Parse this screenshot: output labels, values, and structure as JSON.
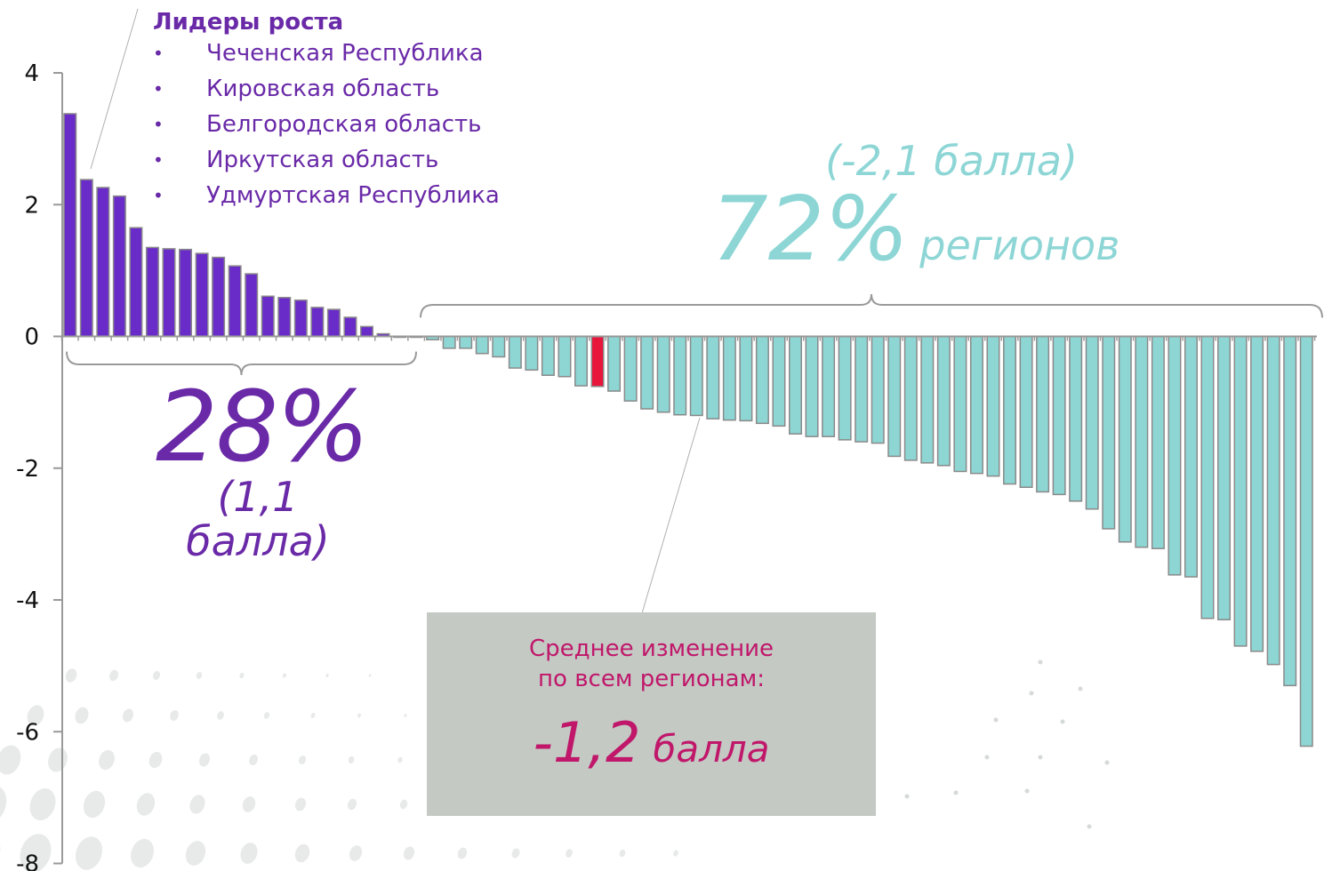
{
  "chart_data": {
    "type": "bar",
    "ylim": [
      -8,
      4
    ],
    "yticks": [
      "4",
      "2",
      "0",
      "-2",
      "-4",
      "-6",
      "-8"
    ],
    "colors": {
      "positive": "#6a2cc9",
      "negative": "#8dd6d4",
      "highlight": "#e8163b",
      "axis": "#999999"
    },
    "highlight_index": 32,
    "values": [
      3.38,
      2.38,
      2.26,
      2.13,
      1.65,
      1.35,
      1.33,
      1.32,
      1.26,
      1.2,
      1.07,
      0.95,
      0.61,
      0.59,
      0.55,
      0.44,
      0.41,
      0.29,
      0.15,
      0.04,
      0.0,
      0.0,
      -0.05,
      -0.18,
      -0.18,
      -0.26,
      -0.31,
      -0.48,
      -0.51,
      -0.59,
      -0.61,
      -0.75,
      -0.76,
      -0.83,
      -0.98,
      -1.1,
      -1.15,
      -1.19,
      -1.2,
      -1.25,
      -1.27,
      -1.28,
      -1.32,
      -1.36,
      -1.48,
      -1.52,
      -1.52,
      -1.57,
      -1.6,
      -1.62,
      -1.82,
      -1.88,
      -1.92,
      -1.96,
      -2.05,
      -2.08,
      -2.12,
      -2.24,
      -2.29,
      -2.36,
      -2.4,
      -2.5,
      -2.62,
      -2.92,
      -3.12,
      -3.2,
      -3.22,
      -3.62,
      -3.65,
      -4.28,
      -4.3,
      -4.7,
      -4.78,
      -4.98,
      -5.3,
      -6.22
    ]
  },
  "leaders": {
    "title": "Лидеры роста",
    "items": [
      "Чеченская Республика",
      "Кировская область",
      "Белгородская область",
      "Иркутская область",
      "Удмуртская Республика"
    ]
  },
  "positive_share": {
    "percent": "28%",
    "score": "(1,1 балла)"
  },
  "negative_share": {
    "score": "(-2,1 балла)",
    "percent": "72%",
    "unit": "регионов"
  },
  "average": {
    "label_line1": "Среднее изменение",
    "label_line2": "по всем регионам:",
    "value": "-1,2",
    "unit": "балла"
  }
}
